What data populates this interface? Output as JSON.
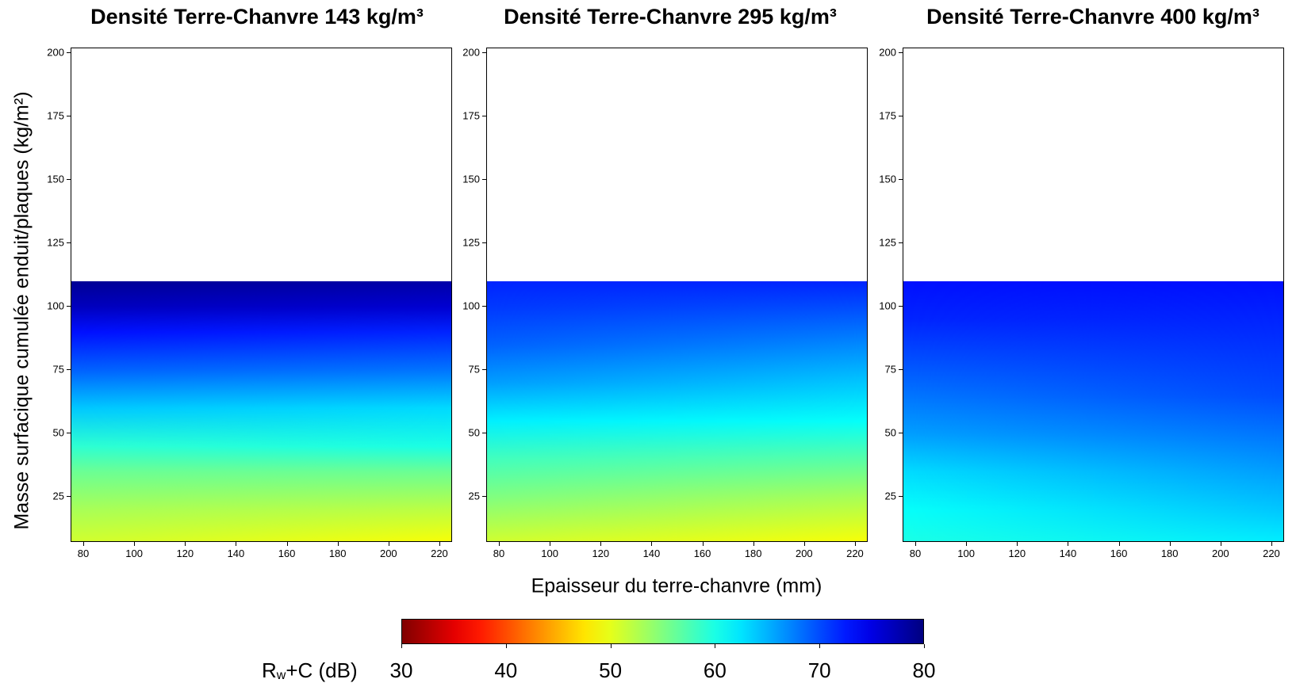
{
  "chart_data": [
    {
      "type": "heatmap",
      "title": "Densité Terre-Chanvre 143 kg/m³",
      "xlim": [
        75,
        225
      ],
      "ylim": [
        7,
        202
      ],
      "xticks": [
        80,
        100,
        120,
        140,
        160,
        180,
        200,
        220
      ],
      "yticks": [
        25,
        50,
        75,
        100,
        125,
        150,
        175,
        200
      ],
      "data_ymax": 110,
      "profile": [
        {
          "y": 110,
          "left": 79,
          "right": 78
        },
        {
          "y": 100,
          "left": 77,
          "right": 76
        },
        {
          "y": 90,
          "left": 73,
          "right": 72
        },
        {
          "y": 75,
          "left": 69,
          "right": 68
        },
        {
          "y": 60,
          "left": 64,
          "right": 63
        },
        {
          "y": 45,
          "left": 59,
          "right": 60
        },
        {
          "y": 35,
          "left": 56,
          "right": 56
        },
        {
          "y": 20,
          "left": 53,
          "right": 52
        },
        {
          "y": 7,
          "left": 51,
          "right": 49
        }
      ]
    },
    {
      "type": "heatmap",
      "title": "Densité Terre-Chanvre 295 kg/m³",
      "xlim": [
        75,
        225
      ],
      "ylim": [
        7,
        202
      ],
      "xticks": [
        80,
        100,
        120,
        140,
        160,
        180,
        200,
        220
      ],
      "yticks": [
        25,
        50,
        75,
        100,
        125,
        150,
        175,
        200
      ],
      "data_ymax": 110,
      "profile": [
        {
          "y": 110,
          "left": 72,
          "right": 72
        },
        {
          "y": 100,
          "left": 71,
          "right": 70
        },
        {
          "y": 85,
          "left": 69,
          "right": 67
        },
        {
          "y": 70,
          "left": 66,
          "right": 64
        },
        {
          "y": 55,
          "left": 62,
          "right": 61
        },
        {
          "y": 40,
          "left": 58,
          "right": 57
        },
        {
          "y": 25,
          "left": 55,
          "right": 53
        },
        {
          "y": 7,
          "left": 51,
          "right": 49
        }
      ]
    },
    {
      "type": "heatmap",
      "title": "Densité Terre-Chanvre 400 kg/m³",
      "xlim": [
        75,
        225
      ],
      "ylim": [
        7,
        202
      ],
      "xticks": [
        80,
        100,
        120,
        140,
        160,
        180,
        200,
        220
      ],
      "yticks": [
        25,
        50,
        75,
        100,
        125,
        150,
        175,
        200
      ],
      "data_ymax": 110,
      "profile": [
        {
          "y": 110,
          "left": 73,
          "right": 73
        },
        {
          "y": 95,
          "left": 72,
          "right": 72
        },
        {
          "y": 80,
          "left": 70,
          "right": 71
        },
        {
          "y": 65,
          "left": 68,
          "right": 70
        },
        {
          "y": 50,
          "left": 66,
          "right": 68
        },
        {
          "y": 35,
          "left": 63,
          "right": 66
        },
        {
          "y": 20,
          "left": 61,
          "right": 64
        },
        {
          "y": 7,
          "left": 60,
          "right": 62
        }
      ]
    }
  ],
  "axes": {
    "xlabel": "Epaisseur du terre-chanvre (mm)",
    "ylabel": "Masse surfacique cumulée enduit/plaques (kg/m²)"
  },
  "colorbar": {
    "label_main": "R",
    "label_sub": "w",
    "label_rest": "+C (dB)",
    "min": 30,
    "max": 80,
    "ticks": [
      30,
      40,
      50,
      60,
      70,
      80
    ],
    "colormap": "jet"
  }
}
